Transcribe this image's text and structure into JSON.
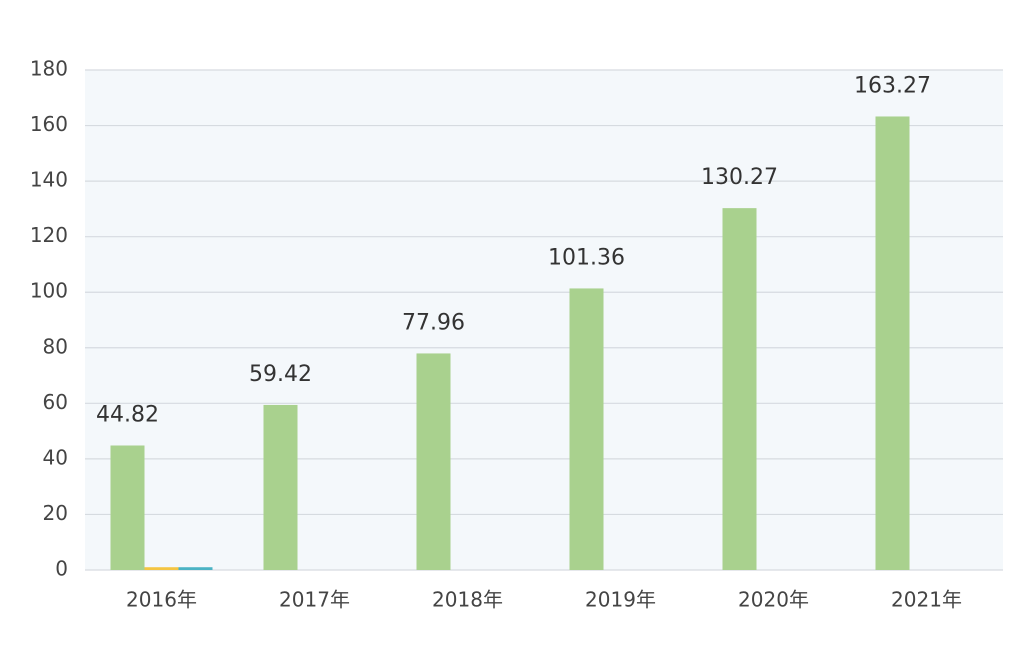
{
  "chart_data": {
    "type": "bar",
    "categories": [
      "2016年",
      "2017年",
      "2018年",
      "2019年",
      "2020年",
      "2021年"
    ],
    "series": [
      {
        "color": "#a9d18e",
        "values": [
          44.82,
          59.42,
          77.96,
          101.36,
          130.27,
          163.27
        ]
      },
      {
        "color": "#f4c542",
        "values": [
          1,
          null,
          null,
          null,
          null,
          null
        ]
      },
      {
        "color": "#4bb3c4",
        "values": [
          1,
          null,
          null,
          null,
          null,
          null
        ]
      }
    ],
    "ylim": [
      0,
      180
    ],
    "yticks": [
      0,
      20,
      40,
      60,
      80,
      100,
      120,
      140,
      160,
      180
    ],
    "grid": true
  }
}
